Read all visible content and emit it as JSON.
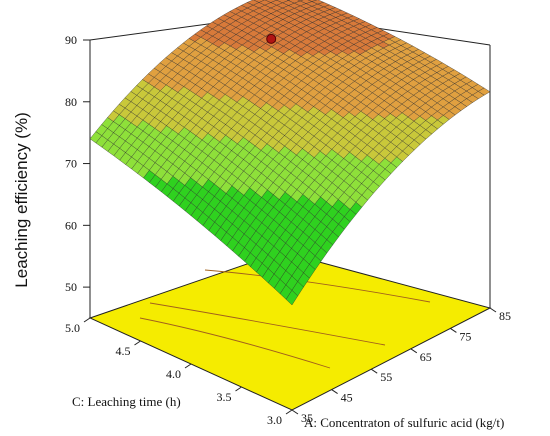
{
  "chart_data": {
    "type": "surface3d",
    "zlabel": "Leaching efficiency (%)",
    "xlabel": "A: Concentraton of sulfuric acid (kg/t)",
    "ylabel": "C: Leaching time (h)",
    "xticks": [
      "35",
      "45",
      "55",
      "65",
      "75",
      "85"
    ],
    "yticks": [
      "3.0",
      "3.5",
      "4.0",
      "4.5",
      "5.0"
    ],
    "zticks": [
      "50",
      "60",
      "70",
      "80",
      "90"
    ],
    "xlim": [
      35,
      85
    ],
    "ylim": [
      3.0,
      5.0
    ],
    "zlim": [
      45,
      90
    ],
    "surface_corners": [
      {
        "A": 35,
        "C": 5.0,
        "efficiency": 74
      },
      {
        "A": 35,
        "C": 3.0,
        "efficiency": 62
      },
      {
        "A": 85,
        "C": 3.0,
        "efficiency": 80
      },
      {
        "A": 85,
        "C": 5.0,
        "efficiency": 82
      }
    ],
    "optimum_point": {
      "A": 68,
      "C": 4.5,
      "efficiency": 83
    },
    "floor_color": "#f5ec00",
    "surface_colors": [
      "#2fd11f",
      "#8ee03a",
      "#c9c83a",
      "#e0a040",
      "#d87a3a",
      "#c0392b"
    ],
    "grid": false
  }
}
